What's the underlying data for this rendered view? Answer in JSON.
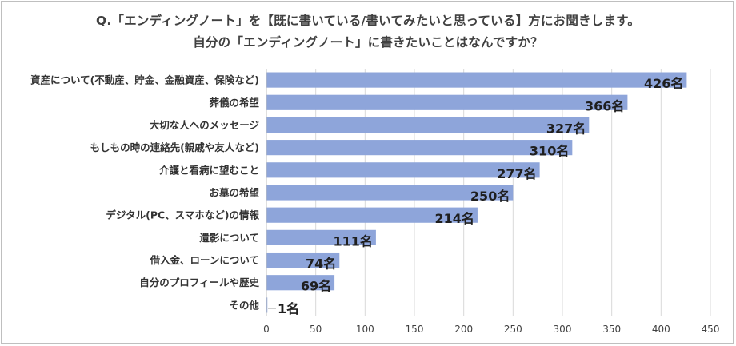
{
  "chart_data": {
    "type": "bar",
    "orientation": "horizontal",
    "title_lines": [
      "Q.「エンディングノート」を【既に書いている/書いてみたいと思っている】方にお聞きします。",
      "自分の「エンディングノート」に書きたいことはなんですか？"
    ],
    "categories": [
      "資産について(不動産、貯金、金融資産、保険など)",
      "葬儀の希望",
      "大切な人へのメッセージ",
      "もしもの時の連絡先(親戚や友人など)",
      "介護と看病に望むこと",
      "お墓の希望",
      "デジタル(PC、スマホなど)の情報",
      "遺影について",
      "借入金、ローンについて",
      "自分のプロフィールや歴史",
      "その他"
    ],
    "values": [
      426,
      366,
      327,
      310,
      277,
      250,
      214,
      111,
      74,
      69,
      1
    ],
    "value_labels": [
      "426名",
      "366名",
      "327名",
      "310名",
      "277名",
      "250名",
      "214名",
      "111名",
      "74名",
      "69名",
      "1名"
    ],
    "x_ticks": [
      0,
      50,
      100,
      150,
      200,
      250,
      300,
      350,
      400,
      450
    ],
    "xlim": [
      0,
      450
    ],
    "grid": true,
    "bar_color": "#8EA5DA",
    "grid_color": "#d9d9d9",
    "axis_color": "#bfbfbf"
  }
}
